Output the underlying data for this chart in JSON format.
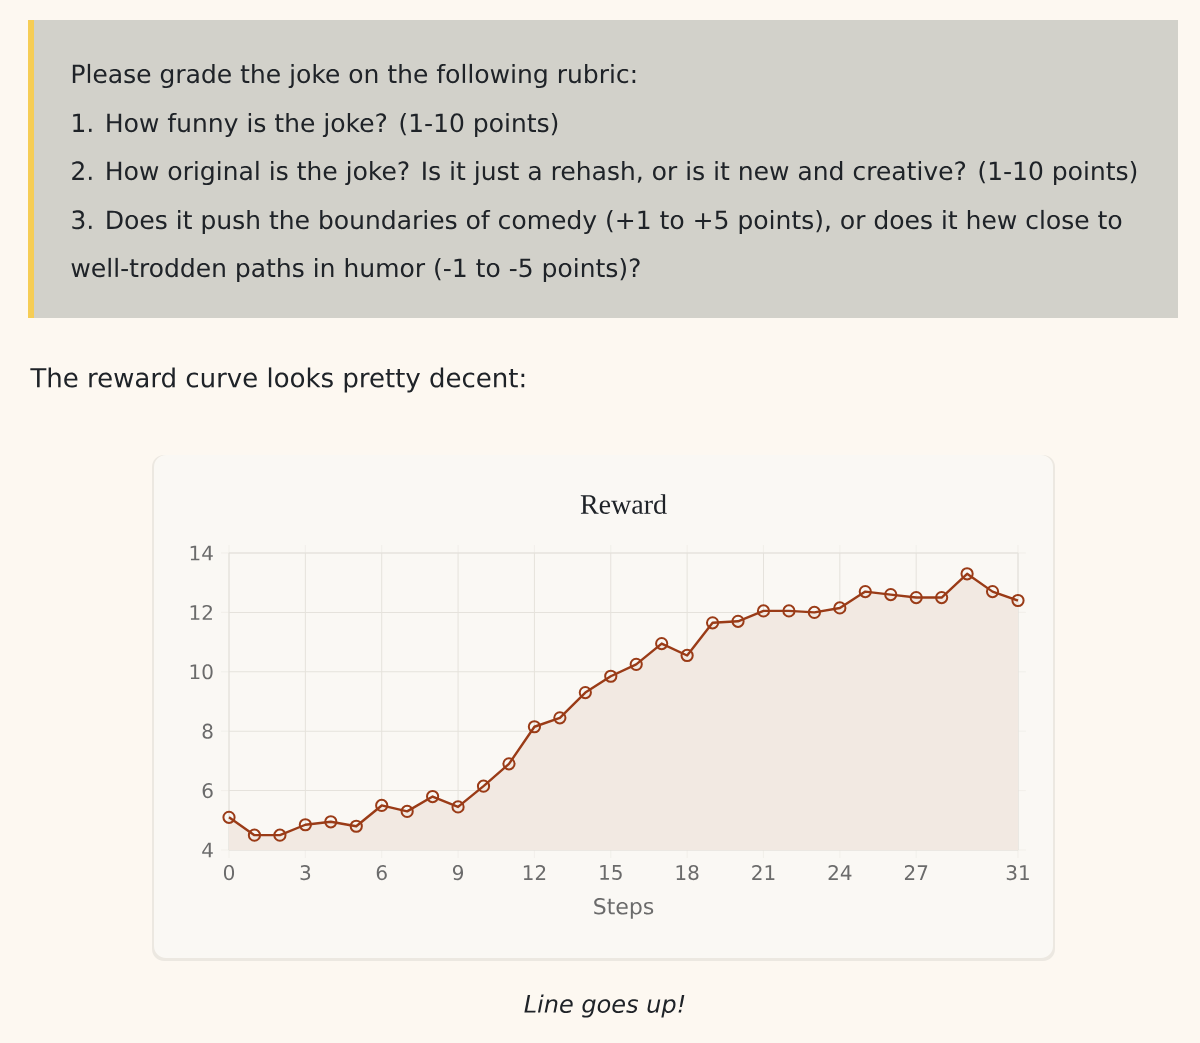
{
  "chart_data": {
    "type": "area",
    "title": "Reward",
    "xlabel": "Steps",
    "annotations": [
      "Please grade the joke on the following rubric:",
      "1. How funny is the joke? (1-10 points)",
      "2. How original is the joke? Is it just a rehash, or is it new and creative? (1-10 points)",
      "3. Does it push the boundaries of comedy (+1 to +5 points), or does it hew close to",
      "well-trodden paths in humor (-1 to -5 points)?",
      "The reward curve looks pretty decent:",
      "Line goes up!"
    ],
    "x": [
      0,
      1,
      2,
      3,
      4,
      5,
      6,
      7,
      8,
      9,
      10,
      11,
      12,
      13,
      14,
      15,
      16,
      17,
      18,
      19,
      20,
      21,
      22,
      23,
      24,
      25,
      26,
      27,
      28,
      29,
      30,
      31
    ],
    "values": [
      5.1,
      4.5,
      4.5,
      4.85,
      4.95,
      4.8,
      5.5,
      5.3,
      5.8,
      5.45,
      6.15,
      6.9,
      8.15,
      8.45,
      9.3,
      9.85,
      10.25,
      10.95,
      10.55,
      11.65,
      11.7,
      12.05,
      12.05,
      12.0,
      12.15,
      12.7,
      12.6,
      12.5,
      12.5,
      13.3,
      12.7,
      12.4
    ],
    "color": "#9a3b17",
    "marker": "circle",
    "grid": true,
    "xlim": [
      0,
      31
    ],
    "xticks": [
      0,
      3,
      6,
      9,
      12,
      15,
      18,
      21,
      24,
      27,
      31
    ],
    "ylim": [
      4,
      14
    ],
    "yticks": [
      4,
      6,
      8,
      10,
      12,
      14
    ]
  }
}
